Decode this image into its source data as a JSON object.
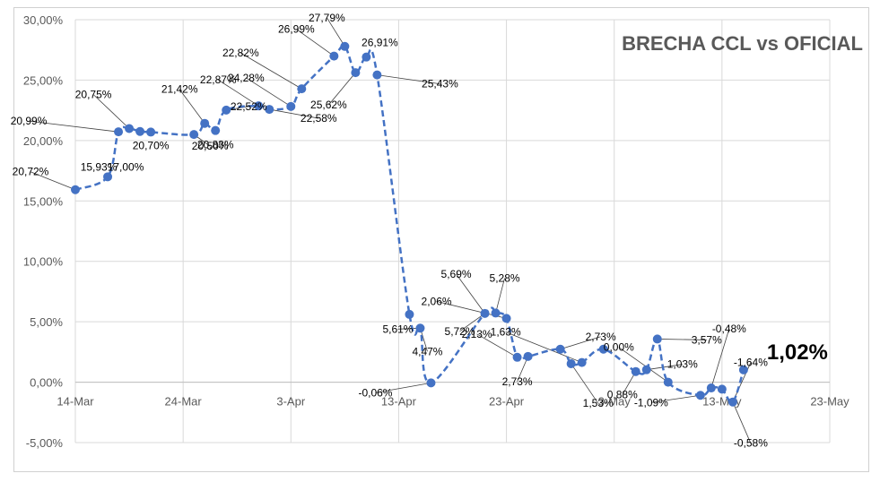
{
  "chart_data": {
    "type": "line",
    "title": "BRECHA CCL vs OFICIAL",
    "xlabel": "",
    "ylabel": "",
    "x_ticks": [
      "14-Mar",
      "24-Mar",
      "3-Apr",
      "13-Apr",
      "23-Apr",
      "3-May",
      "13-May",
      "23-May"
    ],
    "y_ticks": [
      "-5,00%",
      "0,00%",
      "5,00%",
      "10,00%",
      "15,00%",
      "20,00%",
      "25,00%",
      "30,00%"
    ],
    "ylim": [
      -5,
      30
    ],
    "xlim_days": [
      0,
      70
    ],
    "grid": "vertical and horizontal",
    "legend": "none",
    "series": [
      {
        "name": "",
        "color": "#4472c4",
        "style": "dashed",
        "points": [
          {
            "x": "14-Mar",
            "y": 15.93
          },
          {
            "x": "17-Mar",
            "y": 17.0
          },
          {
            "x": "18-Mar",
            "y": 20.72
          },
          {
            "x": "19-Mar",
            "y": 20.99
          },
          {
            "x": "20-Mar",
            "y": 20.75
          },
          {
            "x": "21-Mar",
            "y": 20.7
          },
          {
            "x": "25-Mar",
            "y": 20.5
          },
          {
            "x": "26-Mar",
            "y": 21.42
          },
          {
            "x": "27-Mar",
            "y": 20.83
          },
          {
            "x": "28-Mar",
            "y": 22.52
          },
          {
            "x": "31-Mar",
            "y": 22.87
          },
          {
            "x": "1-Apr",
            "y": 22.58
          },
          {
            "x": "3-Apr",
            "y": 22.82
          },
          {
            "x": "4-Apr",
            "y": 24.28
          },
          {
            "x": "7-Apr",
            "y": 26.99
          },
          {
            "x": "8-Apr",
            "y": 27.79
          },
          {
            "x": "9-Apr",
            "y": 25.62
          },
          {
            "x": "10-Apr",
            "y": 26.91
          },
          {
            "x": "11-Apr",
            "y": 25.43
          },
          {
            "x": "14-Apr",
            "y": 5.61
          },
          {
            "x": "15-Apr",
            "y": 4.47
          },
          {
            "x": "16-Apr",
            "y": -0.06
          },
          {
            "x": "21-Apr",
            "y": 5.69
          },
          {
            "x": "22-Apr",
            "y": 5.72
          },
          {
            "x": "23-Apr",
            "y": 5.28
          },
          {
            "x": "24-Apr",
            "y": 2.06
          },
          {
            "x": "25-Apr",
            "y": 2.13
          },
          {
            "x": "28-Apr",
            "y": 2.73
          },
          {
            "x": "29-Apr",
            "y": 1.53
          },
          {
            "x": "30-Apr",
            "y": 1.63
          },
          {
            "x": "2-May",
            "y": 2.73
          },
          {
            "x": "5-May",
            "y": 0.88
          },
          {
            "x": "6-May",
            "y": 1.03
          },
          {
            "x": "7-May",
            "y": 3.57
          },
          {
            "x": "8-May",
            "y": 0.0
          },
          {
            "x": "11-May",
            "y": -1.09
          },
          {
            "x": "12-May",
            "y": -0.48
          },
          {
            "x": "13-May",
            "y": -0.58
          },
          {
            "x": "14-May",
            "y": -1.64
          },
          {
            "x": "15-May",
            "y": 1.02
          }
        ]
      }
    ],
    "data_labels": [
      {
        "text": "20,72%",
        "idx": 0
      },
      {
        "text": "15,93%",
        "idx": 1
      },
      {
        "text": "17,00%",
        "idx": 1
      },
      {
        "text": "20,99%",
        "idx": 2
      },
      {
        "text": "20,75%",
        "idx": 3
      },
      {
        "text": "20,70%",
        "idx": 4
      },
      {
        "text": "21,42%",
        "idx": 7
      },
      {
        "text": "20,50%",
        "idx": 6
      },
      {
        "text": "20,83%",
        "idx": 8
      },
      {
        "text": "22,52%",
        "idx": 9
      },
      {
        "text": "22,87%",
        "idx": 10
      },
      {
        "text": "22,58%",
        "idx": 11
      },
      {
        "text": "24,28%",
        "idx": 12
      },
      {
        "text": "22,82%",
        "idx": 13
      },
      {
        "text": "26,99%",
        "idx": 14
      },
      {
        "text": "27,79%",
        "idx": 15
      },
      {
        "text": "25,62%",
        "idx": 16
      },
      {
        "text": "26,91%",
        "idx": 17
      },
      {
        "text": "25,43%",
        "idx": 18
      },
      {
        "text": "5,61%",
        "idx": 20
      },
      {
        "text": "4,47%",
        "idx": 20
      },
      {
        "text": "-0,06%",
        "idx": 21
      },
      {
        "text": "5,69%",
        "idx": 22
      },
      {
        "text": "5,72%",
        "idx": 22
      },
      {
        "text": "5,28%",
        "idx": 23
      },
      {
        "text": "2,06%",
        "idx": 24
      },
      {
        "text": "2,13%",
        "idx": 25
      },
      {
        "text": "2,73%",
        "idx": 26
      },
      {
        "text": "2,73%",
        "idx": 27
      },
      {
        "text": "1,53%",
        "idx": 28
      },
      {
        "text": "1,63%",
        "idx": 29
      },
      {
        "text": "0,88%",
        "idx": 31
      },
      {
        "text": "1,03%",
        "idx": 32
      },
      {
        "text": "3,57%",
        "idx": 33
      },
      {
        "text": "0,00%",
        "idx": 34
      },
      {
        "text": "-1,09%",
        "idx": 35
      },
      {
        "text": "-0,48%",
        "idx": 36
      },
      {
        "text": "-0,58%",
        "idx": 38
      },
      {
        "text": "-1,64%",
        "idx": 38
      },
      {
        "text": "1,02%",
        "idx": 39,
        "emphasis": true
      }
    ]
  }
}
